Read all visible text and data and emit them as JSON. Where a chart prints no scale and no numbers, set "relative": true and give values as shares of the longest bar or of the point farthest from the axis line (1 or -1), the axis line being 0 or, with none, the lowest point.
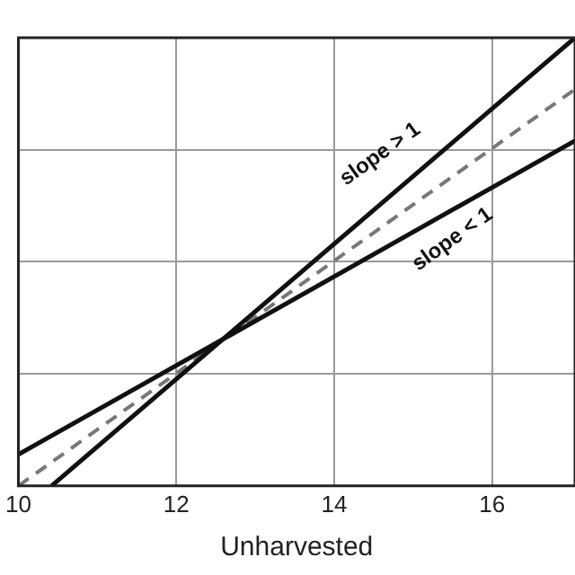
{
  "chart_data": {
    "type": "line",
    "xlabel": "Unharvested",
    "series": [
      {
        "color": "#111111",
        "x": [
          10,
          17.05
        ],
        "values": [
          0.07,
          0.77
        ],
        "line_style": "solid"
      },
      {
        "color": "#111111",
        "x": [
          10.42,
          17.05
        ],
        "values": [
          0,
          1
        ],
        "line_style": "solid"
      },
      {
        "color": "#777777",
        "x": [
          10,
          17.05
        ],
        "values": [
          0,
          0.885
        ],
        "line_style": "dashed"
      }
    ],
    "relative": true,
    "xlim": [
      10,
      17.05
    ],
    "xticks": [
      {
        "value": 10,
        "label": "10"
      },
      12,
      14,
      16
    ],
    "tick_labels": "x",
    "grid": true,
    "legend": false,
    "marker": "none",
    "annotations": [
      "slope > 1",
      "slope < 1"
    ]
  }
}
